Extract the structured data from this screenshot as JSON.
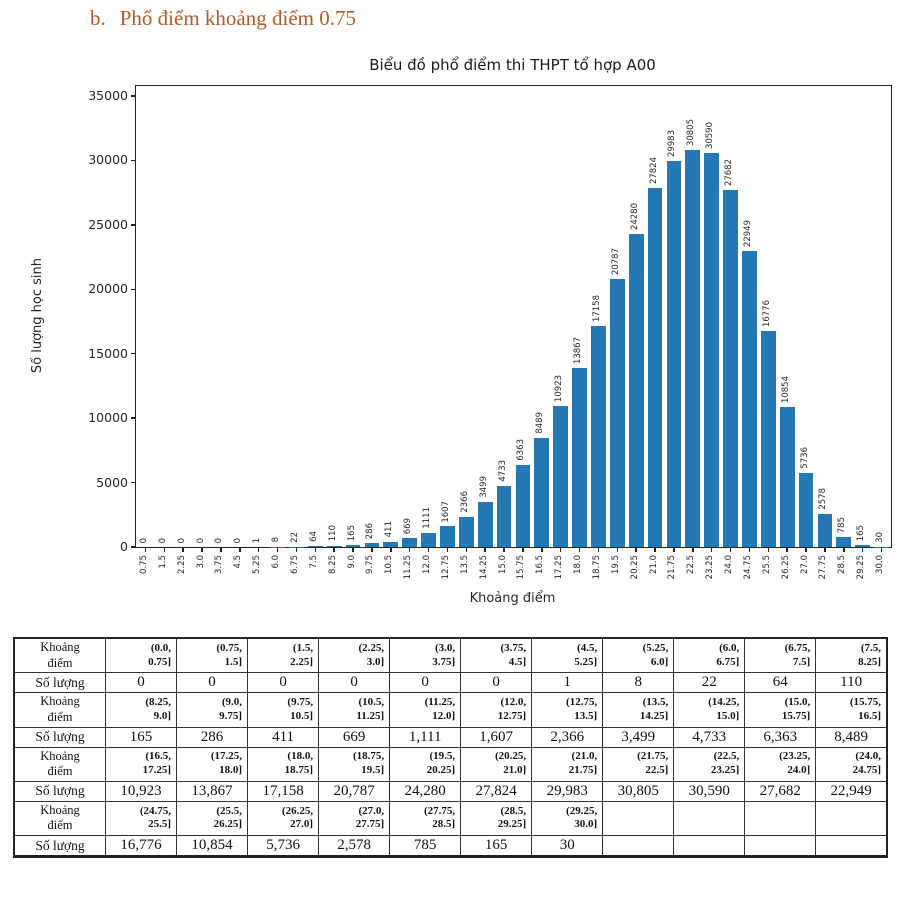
{
  "page": {
    "heading_marker": "b.",
    "heading_text": "Phổ điểm khoảng điểm 0.75"
  },
  "chart_data": {
    "type": "bar",
    "title": "Biểu đồ phổ điểm thi THPT tổ hợp A00",
    "xlabel": "Khoảng điểm",
    "ylabel": "Số lượng học sinh",
    "ylim": [
      0,
      35000
    ],
    "yticks": [
      0,
      5000,
      10000,
      15000,
      20000,
      25000,
      30000,
      35000
    ],
    "grid": false,
    "legend": "none",
    "bar_color": "#2478b4",
    "categories": [
      "0.75",
      "1.5",
      "2.25",
      "3.0",
      "3.75",
      "4.5",
      "5.25",
      "6.0",
      "6.75",
      "7.5",
      "8.25",
      "9.0",
      "9.75",
      "10.5",
      "11.25",
      "12.0",
      "12.75",
      "13.5",
      "14.25",
      "15.0",
      "15.75",
      "16.5",
      "17.25",
      "18.0",
      "18.75",
      "19.5",
      "20.25",
      "21.0",
      "21.75",
      "22.5",
      "23.25",
      "24.0",
      "24.75",
      "25.5",
      "26.25",
      "27.0",
      "27.75",
      "28.5",
      "29.25",
      "30.0"
    ],
    "values": [
      0,
      0,
      0,
      0,
      0,
      0,
      1,
      8,
      22,
      64,
      110,
      165,
      286,
      411,
      669,
      1111,
      1607,
      2366,
      3499,
      4733,
      6363,
      8489,
      10923,
      13867,
      17158,
      20787,
      24280,
      27824,
      29983,
      30805,
      30590,
      27682,
      22949,
      16776,
      10854,
      5736,
      2578,
      785,
      165,
      30
    ]
  },
  "table": {
    "row_pairs": [
      {
        "range_label": "Khoảng\nđiểm",
        "count_label": "Số lượng",
        "ranges": [
          "(0.0,\n0.75]",
          "(0.75,\n1.5]",
          "(1.5,\n2.25]",
          "(2.25,\n3.0]",
          "(3.0,\n3.75]",
          "(3.75,\n4.5]",
          "(4.5,\n5.25]",
          "(5.25,\n6.0]",
          "(6.0,\n6.75]",
          "(6.75,\n7.5]",
          "(7.5,\n8.25]"
        ],
        "counts": [
          "0",
          "0",
          "0",
          "0",
          "0",
          "0",
          "1",
          "8",
          "22",
          "64",
          "110"
        ]
      },
      {
        "range_label": "Khoảng\nđiểm",
        "count_label": "Số lượng",
        "ranges": [
          "(8.25,\n9.0]",
          "(9.0,\n9.75]",
          "(9.75,\n10.5]",
          "(10.5,\n11.25]",
          "(11.25,\n12.0]",
          "(12.0,\n12.75]",
          "(12.75,\n13.5]",
          "(13.5,\n14.25]",
          "(14.25,\n15.0]",
          "(15.0,\n15.75]",
          "(15.75,\n16.5]"
        ],
        "counts": [
          "165",
          "286",
          "411",
          "669",
          "1,111",
          "1,607",
          "2,366",
          "3,499",
          "4,733",
          "6,363",
          "8,489"
        ]
      },
      {
        "range_label": "Khoảng\nđiểm",
        "count_label": "Số lượng",
        "ranges": [
          "(16.5,\n17.25]",
          "(17.25,\n18.0]",
          "(18.0,\n18.75]",
          "(18.75,\n19.5]",
          "(19.5,\n20.25]",
          "(20.25,\n21.0]",
          "(21.0,\n21.75]",
          "(21.75,\n22.5]",
          "(22.5,\n23.25]",
          "(23.25,\n24.0]",
          "(24.0,\n24.75]"
        ],
        "counts": [
          "10,923",
          "13,867",
          "17,158",
          "20,787",
          "24,280",
          "27,824",
          "29,983",
          "30,805",
          "30,590",
          "27,682",
          "22,949"
        ]
      },
      {
        "range_label": "Khoảng\nđiểm",
        "count_label": "Số lượng",
        "ranges": [
          "(24.75,\n25.5]",
          "(25.5,\n26.25]",
          "(26.25,\n27.0]",
          "(27.0,\n27.75]",
          "(27.75,\n28.5]",
          "(28.5,\n29.25]",
          "(29.25,\n30.0]",
          "",
          "",
          "",
          ""
        ],
        "counts": [
          "16,776",
          "10,854",
          "5,736",
          "2,578",
          "785",
          "165",
          "30",
          "",
          "",
          "",
          ""
        ]
      }
    ]
  }
}
